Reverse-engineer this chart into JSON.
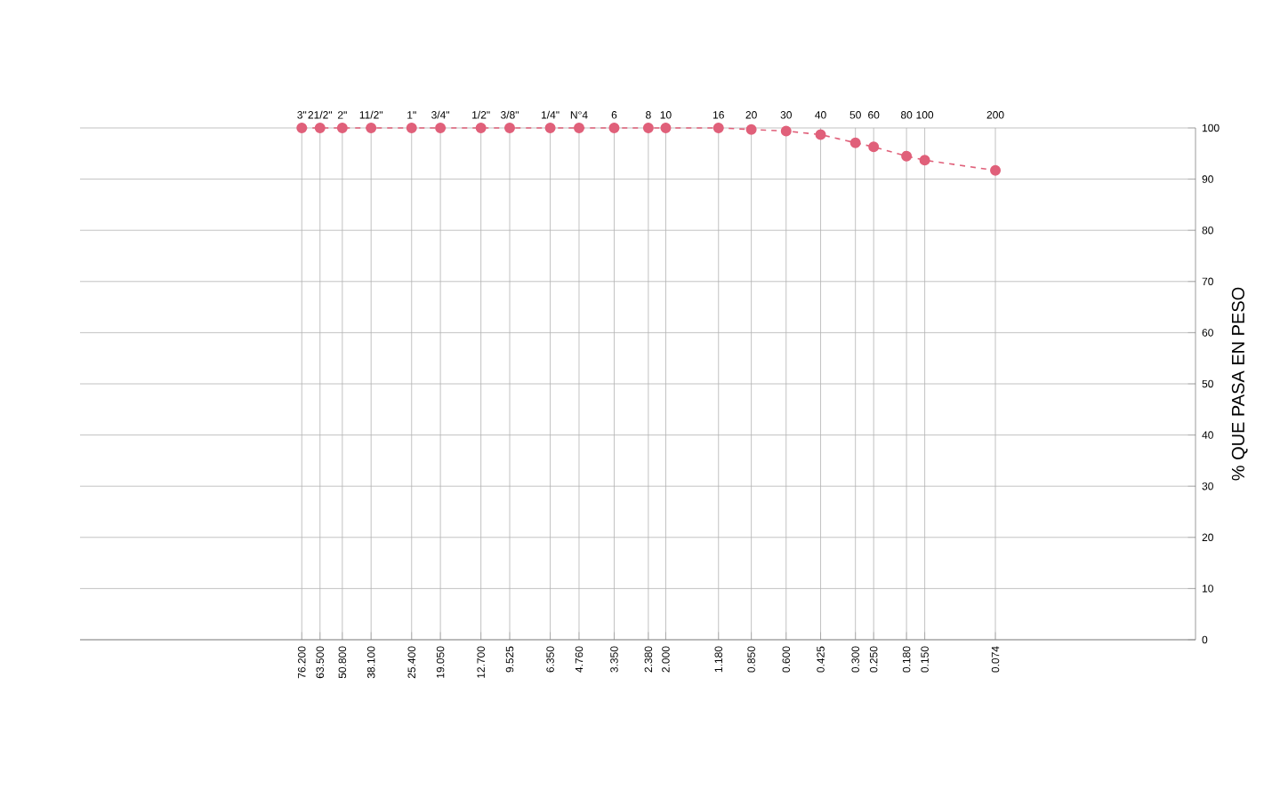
{
  "chart_data": {
    "type": "line",
    "ylabel": "% QUE PASA EN PESO",
    "x": [
      76.2,
      63.5,
      50.8,
      38.1,
      25.4,
      19.05,
      12.7,
      9.525,
      6.35,
      4.76,
      3.35,
      2.38,
      2.0,
      1.18,
      0.85,
      0.6,
      0.425,
      0.3,
      0.25,
      0.18,
      0.15,
      0.074
    ],
    "values": [
      100,
      100,
      100,
      100,
      100,
      100,
      100,
      100,
      100,
      100,
      100,
      100,
      100,
      100,
      99.7,
      99.4,
      98.7,
      97.1,
      96.3,
      94.5,
      93.7,
      91.7
    ],
    "color": "#e0607a",
    "marker": "circle",
    "line_style": "dashed",
    "log": "x",
    "grid": true,
    "xlim": [
      700,
      0.01
    ],
    "ylim": [
      0,
      100
    ],
    "xticks": [
      {
        "value": 76.2,
        "label": "76.200"
      },
      {
        "value": 63.5,
        "label": "63.500"
      },
      {
        "value": 50.8,
        "label": "50.800"
      },
      {
        "value": 38.1,
        "label": "38.100"
      },
      {
        "value": 25.4,
        "label": "25.400"
      },
      {
        "value": 19.05,
        "label": "19.050"
      },
      {
        "value": 12.7,
        "label": "12.700"
      },
      {
        "value": 9.525,
        "label": "9.525"
      },
      {
        "value": 6.35,
        "label": "6.350"
      },
      {
        "value": 4.76,
        "label": "4.760"
      },
      {
        "value": 3.35,
        "label": "3.350"
      },
      {
        "value": 2.38,
        "label": "2.380"
      },
      {
        "value": 2.0,
        "label": "2.000"
      },
      {
        "value": 1.18,
        "label": "1.180"
      },
      {
        "value": 0.85,
        "label": "0.850"
      },
      {
        "value": 0.6,
        "label": "0.600"
      },
      {
        "value": 0.425,
        "label": "0.425"
      },
      {
        "value": 0.3,
        "label": "0.300"
      },
      {
        "value": 0.25,
        "label": "0.250"
      },
      {
        "value": 0.18,
        "label": "0.180"
      },
      {
        "value": 0.15,
        "label": "0.150"
      },
      {
        "value": 0.074,
        "label": "0.074"
      }
    ],
    "annotations": [
      "3\"",
      "21/2\"",
      "2\"",
      "11/2\"",
      "1\"",
      "3/4\"",
      "1/2\"",
      "3/8\"",
      "1/4\"",
      "N°4",
      "6",
      "8",
      "10",
      "16",
      "20",
      "30",
      "40",
      "50",
      "60",
      "80",
      "100",
      "200"
    ],
    "yticks": [
      0,
      10,
      20,
      30,
      40,
      50,
      60,
      70,
      80,
      90,
      100
    ]
  }
}
